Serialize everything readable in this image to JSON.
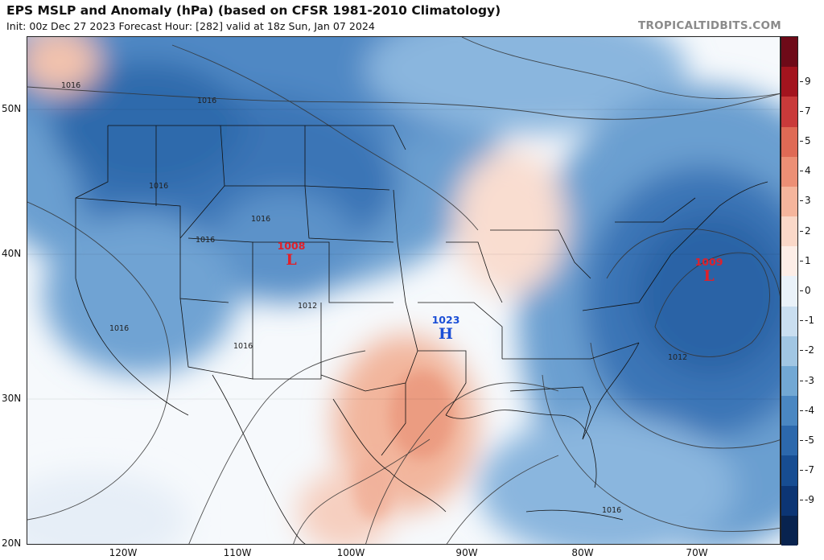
{
  "header": {
    "title": "EPS MSLP and Anomaly (hPa) (based on CFSR 1981-2010 Climatology)",
    "subtitle": "Init: 00z Dec 27 2023   Forecast Hour: [282]   valid at 18z Sun, Jan 07 2024",
    "brand": "TROPICALTIDBITS.COM"
  },
  "map": {
    "lat_labels": [
      "50N",
      "40N",
      "30N",
      "20N"
    ],
    "lon_labels": [
      "120W",
      "110W",
      "100W",
      "90W",
      "80W",
      "70W"
    ],
    "pressure_centers": [
      {
        "kind": "L",
        "value": "1008",
        "color": "#e0202a"
      },
      {
        "kind": "L",
        "value": "1009",
        "color": "#e0202a"
      },
      {
        "kind": "H",
        "value": "1023",
        "color": "#1b4fd6"
      }
    ],
    "isobar_labels": [
      "1016",
      "1016",
      "1016",
      "1016",
      "1016",
      "1012",
      "1016",
      "1016",
      "1012",
      "1016"
    ]
  },
  "colorbar": {
    "labels": [
      "9",
      "7",
      "5",
      "4",
      "3",
      "2",
      "1",
      "0",
      "-1",
      "-2",
      "-3",
      "-4",
      "-5",
      "-7",
      "-9"
    ],
    "colors": [
      "#6e0a18",
      "#a3141e",
      "#c93a3a",
      "#df6a55",
      "#ec8f75",
      "#f5b59c",
      "#fad8c8",
      "#fdeee7",
      "#eaf2f9",
      "#c9def0",
      "#a1c6e3",
      "#72a8d4",
      "#4a87c2",
      "#2c68ac",
      "#174d92",
      "#0c3574",
      "#08234f"
    ]
  }
}
